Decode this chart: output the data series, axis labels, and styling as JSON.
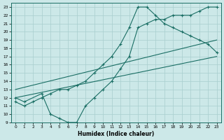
{
  "xlabel": "Humidex (Indice chaleur)",
  "bg_color": "#cce8e8",
  "grid_color": "#a8cece",
  "line_color": "#1a6e64",
  "xlim": [
    -0.5,
    23.5
  ],
  "ylim": [
    9,
    23.5
  ],
  "xticks": [
    0,
    1,
    2,
    3,
    4,
    5,
    6,
    7,
    8,
    9,
    10,
    11,
    12,
    13,
    14,
    15,
    16,
    17,
    18,
    19,
    20,
    21,
    22,
    23
  ],
  "yticks": [
    9,
    10,
    11,
    12,
    13,
    14,
    15,
    16,
    17,
    18,
    19,
    20,
    21,
    22,
    23
  ],
  "series": [
    {
      "x": [
        0,
        1,
        2,
        3,
        4,
        5,
        6,
        7,
        8,
        9,
        10,
        11,
        12,
        13,
        14,
        15,
        16,
        17,
        18,
        19,
        20,
        21,
        22,
        23
      ],
      "y": [
        11.5,
        11,
        11.5,
        12,
        12.5,
        13,
        13,
        13.5,
        14,
        15,
        16,
        17,
        18.5,
        20.5,
        23,
        23,
        22,
        21,
        20.5,
        20,
        19.5,
        19,
        18.5,
        17.5
      ],
      "marker": true
    },
    {
      "x": [
        0,
        1,
        3,
        4,
        5,
        6,
        7,
        8,
        9,
        10,
        11,
        12,
        13,
        14,
        15,
        16,
        17,
        18,
        19,
        20,
        21,
        22,
        23
      ],
      "y": [
        12,
        11.5,
        12.5,
        10,
        9.5,
        9,
        9,
        11,
        12,
        13,
        14,
        15.5,
        17,
        20.5,
        21,
        21.5,
        21.5,
        22,
        22,
        22,
        22.5,
        23,
        23
      ],
      "marker": true
    },
    {
      "x": [
        0,
        23
      ],
      "y": [
        12,
        17
      ],
      "marker": false
    },
    {
      "x": [
        0,
        23
      ],
      "y": [
        13,
        19
      ],
      "marker": false
    }
  ]
}
